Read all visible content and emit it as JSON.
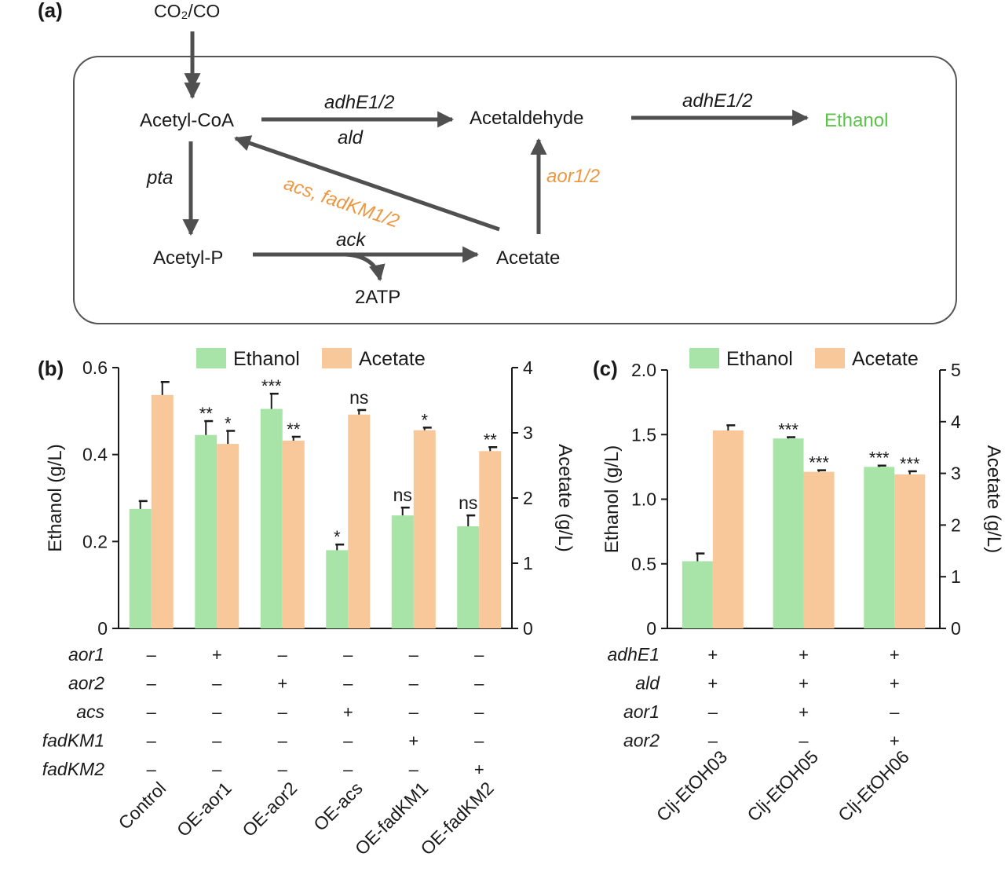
{
  "panel_labels": {
    "a": "(a)",
    "b": "(b)",
    "c": "(c)"
  },
  "colors": {
    "ethanol": "#a8e4a8",
    "acetate": "#f8c89a",
    "green_text": "#5cc24a",
    "orange_text": "#ec9740",
    "arrow": "#505050",
    "axis": "#1a1a1a"
  },
  "pathway": {
    "source": "CO₂/CO",
    "nodes": {
      "acetyl_coa": "Acetyl-CoA",
      "acetaldehyde": "Acetaldehyde",
      "ethanol": "Ethanol",
      "acetyl_p": "Acetyl-P",
      "acetate": "Acetate",
      "atp": "2ATP"
    },
    "enzymes": {
      "adhe_1": "adhE1/2",
      "ald": "ald",
      "adhe_2": "adhE1/2",
      "pta": "pta",
      "ack": "ack",
      "acs_fadkm": "acs, fadKM1/2",
      "aor": "aor1/2"
    }
  },
  "chart_data": [
    {
      "type": "bar",
      "panel": "(b)",
      "legend": [
        "Ethanol",
        "Acetate"
      ],
      "ylabel_left": "Ethanol (g/L)",
      "ylabel_right": "Acetate (g/L)",
      "ylim_left": [
        0,
        0.6
      ],
      "ylim_right": [
        0,
        4
      ],
      "yticks_left": [
        "0",
        "0.2",
        "0.4",
        "0.6"
      ],
      "yticks_right": [
        "0",
        "1",
        "2",
        "3",
        "4"
      ],
      "categories": [
        "Control",
        "OE-aor1",
        "OE-aor2",
        "OE-acs",
        "OE-fadKM1",
        "OE-fadKM2"
      ],
      "series": [
        {
          "name": "Ethanol",
          "axis": "left",
          "values": [
            0.275,
            0.445,
            0.505,
            0.18,
            0.26,
            0.235
          ],
          "errors": [
            0.018,
            0.032,
            0.035,
            0.013,
            0.018,
            0.025
          ],
          "significance": [
            "",
            "**",
            "***",
            "*",
            "ns",
            "ns"
          ]
        },
        {
          "name": "Acetate",
          "axis": "right",
          "values": [
            3.58,
            2.83,
            2.88,
            3.28,
            3.04,
            2.72
          ],
          "errors": [
            0.2,
            0.2,
            0.06,
            0.07,
            0.04,
            0.06
          ],
          "significance": [
            "",
            "*",
            "**",
            "ns",
            "*",
            "**"
          ]
        }
      ],
      "genotype": {
        "rows": [
          "aor1",
          "aor2",
          "acs",
          "fadKM1",
          "fadKM2"
        ],
        "marks": [
          [
            "–",
            "+",
            "–",
            "–",
            "–",
            "–"
          ],
          [
            "–",
            "–",
            "+",
            "–",
            "–",
            "–"
          ],
          [
            "–",
            "–",
            "–",
            "+",
            "–",
            "–"
          ],
          [
            "–",
            "–",
            "–",
            "–",
            "+",
            "–"
          ],
          [
            "–",
            "–",
            "–",
            "–",
            "–",
            "+"
          ]
        ]
      }
    },
    {
      "type": "bar",
      "panel": "(c)",
      "legend": [
        "Ethanol",
        "Acetate"
      ],
      "ylabel_left": "Ethanol (g/L)",
      "ylabel_right": "Acetate (g/L)",
      "ylim_left": [
        0,
        2.0
      ],
      "ylim_right": [
        0,
        5
      ],
      "yticks_left": [
        "0",
        "0.5",
        "1.0",
        "1.5",
        "2.0"
      ],
      "yticks_right": [
        "0",
        "1",
        "2",
        "3",
        "4",
        "5"
      ],
      "categories": [
        "Clj-EtOH03",
        "Clj-EtOH05",
        "Clj-EtOH06"
      ],
      "series": [
        {
          "name": "Ethanol",
          "axis": "left",
          "values": [
            0.52,
            1.47,
            1.25
          ],
          "errors": [
            0.06,
            0.01,
            0.01
          ],
          "significance": [
            "",
            "***",
            "***"
          ]
        },
        {
          "name": "Acetate",
          "axis": "right",
          "values": [
            3.83,
            3.03,
            2.98
          ],
          "errors": [
            0.1,
            0.03,
            0.06
          ],
          "significance": [
            "",
            "***",
            "***"
          ]
        }
      ],
      "genotype": {
        "rows": [
          "adhE1",
          "ald",
          "aor1",
          "aor2"
        ],
        "marks": [
          [
            "+",
            "+",
            "+"
          ],
          [
            "+",
            "+",
            "+"
          ],
          [
            "–",
            "+",
            "–"
          ],
          [
            "–",
            "–",
            "+"
          ]
        ]
      }
    }
  ]
}
